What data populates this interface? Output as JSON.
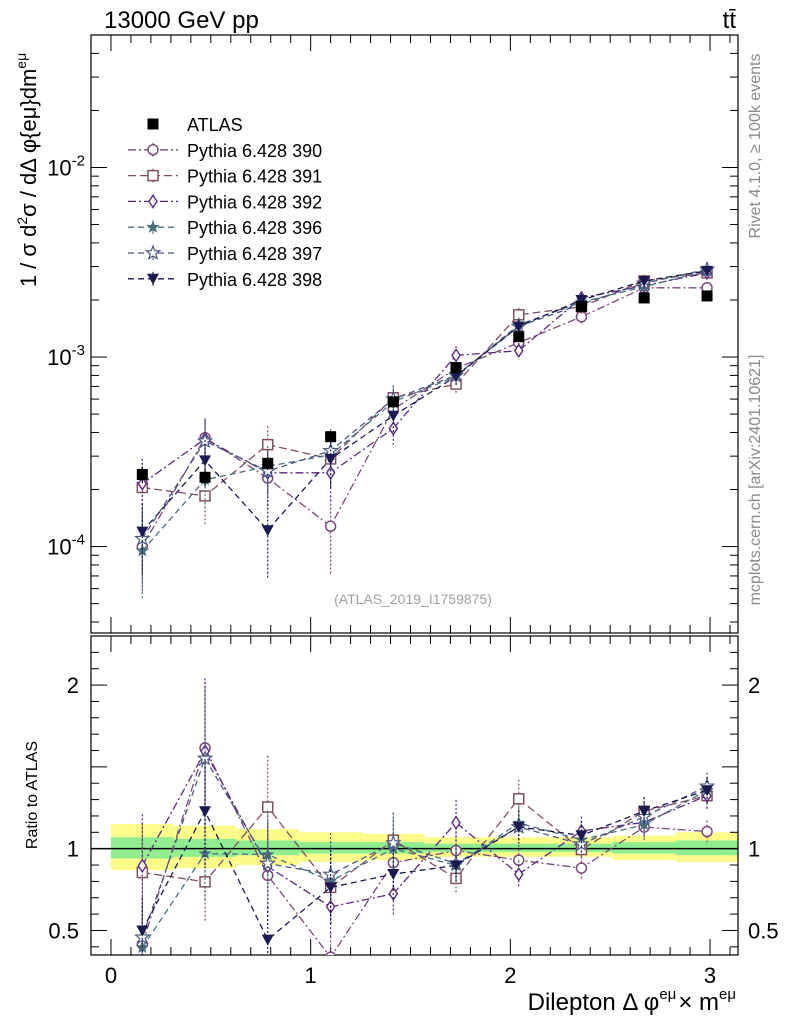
{
  "header": {
    "left_label": "13000 GeV pp",
    "right_label": "tt̄"
  },
  "side_labels": {
    "rivet": "Rivet 4.1.0, ≥ 100k events",
    "mcplots": "mcplots.cern.ch [arXiv:2401.10621]"
  },
  "analysis_id": "(ATLAS_2019_I1759875)",
  "chart_data": {
    "type": "scatter",
    "title": "",
    "ylabel": "1 / σ d²σ / dΔ φ{eμ}dm^eμ",
    "ylabel_parts": {
      "prefix": "1 / σ  d",
      "sup1": "2",
      "mid": "σ / dΔ φ{eμ}dm",
      "sup2": "eμ"
    },
    "xlabel": "Dilepton Δ φ^eμ × m^eμ",
    "xlabel_parts": {
      "prefix": "Dilepton Δ φ",
      "sup1": "eμ",
      "mid": "× m",
      "sup2": "eμ"
    },
    "ratio_ylabel": "Ratio to ATLAS",
    "xlim": [
      -0.1,
      3.14
    ],
    "ylim": [
      3.5e-05,
      0.05
    ],
    "ratio_ylim": [
      0.35,
      2.3
    ],
    "y_scale": "log",
    "x_ticks": [
      "0",
      "1",
      "2",
      "3"
    ],
    "y_ticks": [
      "10^-4",
      "10^-3",
      "10^-2"
    ],
    "ratio_ticks": [
      "0.5",
      "1",
      "2"
    ],
    "legend_position": "top-left",
    "x": [
      0.157,
      0.471,
      0.785,
      1.1,
      1.414,
      1.728,
      2.042,
      2.356,
      2.67,
      2.985
    ],
    "band": {
      "x_edges": [
        0.0,
        0.314,
        0.628,
        0.942,
        1.257,
        1.571,
        1.885,
        2.199,
        2.513,
        2.827,
        3.142
      ],
      "yellow_lo": [
        0.87,
        0.88,
        0.9,
        0.92,
        0.93,
        0.95,
        0.95,
        0.95,
        0.93,
        0.92
      ],
      "yellow_hi": [
        1.15,
        1.14,
        1.12,
        1.1,
        1.09,
        1.07,
        1.07,
        1.07,
        1.08,
        1.1
      ],
      "green_lo": [
        0.94,
        0.95,
        0.96,
        0.97,
        0.97,
        0.98,
        0.98,
        0.98,
        0.97,
        0.96
      ],
      "green_hi": [
        1.07,
        1.06,
        1.05,
        1.04,
        1.04,
        1.03,
        1.03,
        1.03,
        1.04,
        1.05
      ]
    },
    "series": [
      {
        "name": "ATLAS",
        "marker": "filled-square",
        "color": "#000000",
        "dash": "",
        "values": [
          0.00024,
          0.000232,
          0.000275,
          0.00038,
          0.00058,
          0.00088,
          0.00128,
          0.00185,
          0.00205,
          0.0021
        ],
        "err_rel": [
          0.1,
          0.1,
          0.08,
          0.07,
          0.06,
          0.05,
          0.05,
          0.05,
          0.05,
          0.06
        ]
      },
      {
        "name": "Pythia 6.428 390",
        "marker": "open-circle",
        "color": "#7a4a7a",
        "dash": "8,3,2,3",
        "values": [
          0.0001,
          0.000375,
          0.00023,
          0.000128,
          0.00053,
          0.00087,
          0.00119,
          0.00163,
          0.00232,
          0.00232
        ],
        "err_rel": [
          0.42,
          0.25,
          0.3,
          0.45,
          0.2,
          0.12,
          0.1,
          0.08,
          0.07,
          0.06
        ]
      },
      {
        "name": "Pythia 6.428 391",
        "marker": "open-square",
        "color": "#805060",
        "dash": "8,4",
        "values": [
          0.000205,
          0.000185,
          0.000345,
          0.00029,
          0.00061,
          0.00072,
          0.00167,
          0.00184,
          0.00252,
          0.00278
        ],
        "err_rel": [
          0.35,
          0.3,
          0.25,
          0.3,
          0.16,
          0.12,
          0.09,
          0.08,
          0.07,
          0.06
        ]
      },
      {
        "name": "Pythia 6.428 392",
        "marker": "open-diamond",
        "color": "#5a2a80",
        "dash": "8,3,2,3",
        "values": [
          0.000215,
          0.00037,
          0.000245,
          0.000245,
          0.00042,
          0.00102,
          0.00108,
          0.00205,
          0.00238,
          0.00278
        ],
        "err_rel": [
          0.35,
          0.28,
          0.28,
          0.3,
          0.18,
          0.12,
          0.1,
          0.08,
          0.07,
          0.06
        ]
      },
      {
        "name": "Pythia 6.428 396",
        "marker": "filled-star",
        "color": "#4a7080",
        "dash": "6,4",
        "values": [
          9.5e-05,
          0.000225,
          0.000265,
          0.000305,
          0.00058,
          0.00079,
          0.00148,
          0.00195,
          0.00235,
          0.00285
        ],
        "err_rel": [
          0.45,
          0.3,
          0.28,
          0.3,
          0.18,
          0.12,
          0.09,
          0.08,
          0.07,
          0.06
        ]
      },
      {
        "name": "Pythia 6.428 397",
        "marker": "open-star",
        "color": "#4a5a80",
        "dash": "6,4",
        "values": [
          0.00011,
          0.00036,
          0.00025,
          0.00032,
          0.0006,
          0.0008,
          0.00145,
          0.0019,
          0.00245,
          0.0029
        ],
        "err_rel": [
          0.42,
          0.28,
          0.28,
          0.3,
          0.18,
          0.12,
          0.09,
          0.08,
          0.07,
          0.06
        ]
      },
      {
        "name": "Pythia 6.428 398",
        "marker": "filled-triangle-down",
        "color": "#1a1a50",
        "dash": "6,4",
        "values": [
          0.00012,
          0.000285,
          0.000122,
          0.00029,
          0.00049,
          0.00079,
          0.00145,
          0.002,
          0.00252,
          0.00285
        ],
        "err_rel": [
          0.4,
          0.28,
          0.45,
          0.3,
          0.18,
          0.12,
          0.09,
          0.08,
          0.07,
          0.06
        ]
      }
    ]
  }
}
